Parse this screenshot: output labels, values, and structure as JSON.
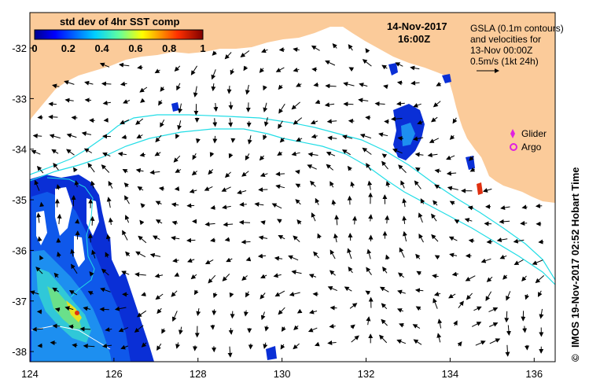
{
  "map": {
    "date": "14-Nov-2017",
    "time": "16:00Z",
    "colorbar": {
      "title": "std dev of 4hr SST comp",
      "ticks": [
        "0",
        "0.2",
        "0.4",
        "0.6",
        "0.8",
        "1"
      ],
      "min": 0,
      "max": 1
    },
    "info": {
      "line1": "GSLA (0.1m contours)",
      "line2": "and velocities for",
      "line3": "13-Nov 00:00Z",
      "line4": "0.5m/s (1kt 24h)"
    },
    "legend": {
      "glider": "Glider",
      "argo": "Argo"
    },
    "credit": "IMOS 19-Nov-2017 02:52 Hobart Time",
    "copyright": "©",
    "x_axis": {
      "min": 124,
      "max": 136.5,
      "ticks": [
        "124",
        "126",
        "128",
        "130",
        "132",
        "134",
        "136"
      ]
    },
    "y_axis": {
      "min": -38.2,
      "max": -31.3,
      "ticks": [
        "-32",
        "-33",
        "-34",
        "-35",
        "-36",
        "-37",
        "-38"
      ]
    },
    "colors": {
      "land": "#fbcb9a",
      "contour": "#22dde6",
      "glider": "#e020e0",
      "argo": "#e020e0"
    }
  }
}
